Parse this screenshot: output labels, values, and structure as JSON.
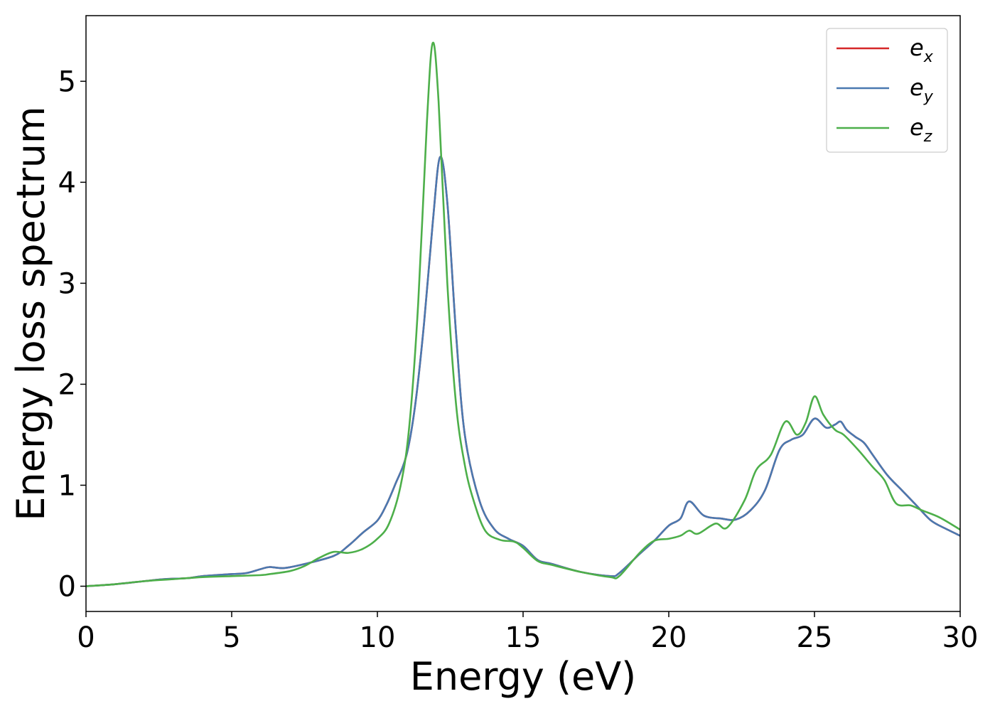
{
  "chart_data": {
    "type": "line",
    "xlabel": "Energy (eV)",
    "ylabel": "Energy loss spectrum",
    "xlim": [
      0,
      30
    ],
    "ylim": [
      -0.25,
      5.65
    ],
    "xticks": [
      0,
      5,
      10,
      15,
      20,
      25,
      30
    ],
    "yticks": [
      0,
      1,
      2,
      3,
      4,
      5
    ],
    "grid": false,
    "legend_position": "top-right",
    "series": [
      {
        "name": "e_x",
        "label_base": "e",
        "label_sub": "x",
        "color": "#d62728",
        "x": [
          0,
          1,
          2,
          2.7,
          3.5,
          4,
          5,
          5.5,
          6,
          6.3,
          6.8,
          7.5,
          8.5,
          9,
          9.5,
          10,
          10.3,
          10.6,
          11,
          11.3,
          11.6,
          11.9,
          12.15,
          12.4,
          12.7,
          13,
          13.5,
          14,
          14.5,
          15,
          15.5,
          16,
          17,
          18,
          18.3,
          19,
          19.5,
          20,
          20.4,
          20.7,
          21.2,
          21.8,
          22.3,
          22.8,
          23.3,
          23.8,
          24.2,
          24.6,
          25,
          25.4,
          25.7,
          25.9,
          26.1,
          26.4,
          26.7,
          27,
          27.5,
          28,
          28.5,
          29,
          29.5,
          30
        ],
        "y": [
          0,
          0.02,
          0.05,
          0.07,
          0.08,
          0.1,
          0.12,
          0.13,
          0.17,
          0.19,
          0.18,
          0.22,
          0.3,
          0.4,
          0.53,
          0.65,
          0.8,
          1.0,
          1.3,
          1.8,
          2.6,
          3.6,
          4.25,
          3.8,
          2.5,
          1.5,
          0.85,
          0.57,
          0.47,
          0.4,
          0.26,
          0.22,
          0.14,
          0.1,
          0.13,
          0.32,
          0.45,
          0.6,
          0.67,
          0.84,
          0.7,
          0.67,
          0.66,
          0.75,
          0.95,
          1.35,
          1.45,
          1.5,
          1.66,
          1.57,
          1.6,
          1.63,
          1.55,
          1.48,
          1.42,
          1.3,
          1.1,
          0.95,
          0.8,
          0.65,
          0.57,
          0.5
        ]
      },
      {
        "name": "e_y",
        "label_base": "e",
        "label_sub": "y",
        "color": "#4a79b0",
        "x": [
          0,
          1,
          2,
          2.7,
          3.5,
          4,
          5,
          5.5,
          6,
          6.3,
          6.8,
          7.5,
          8.5,
          9,
          9.5,
          10,
          10.3,
          10.6,
          11,
          11.3,
          11.6,
          11.9,
          12.15,
          12.4,
          12.7,
          13,
          13.5,
          14,
          14.5,
          15,
          15.5,
          16,
          17,
          18,
          18.3,
          19,
          19.5,
          20,
          20.4,
          20.7,
          21.2,
          21.8,
          22.3,
          22.8,
          23.3,
          23.8,
          24.2,
          24.6,
          25,
          25.4,
          25.7,
          25.9,
          26.1,
          26.4,
          26.7,
          27,
          27.5,
          28,
          28.5,
          29,
          29.5,
          30
        ],
        "y": [
          0,
          0.02,
          0.05,
          0.07,
          0.08,
          0.1,
          0.12,
          0.13,
          0.17,
          0.19,
          0.18,
          0.22,
          0.3,
          0.4,
          0.53,
          0.65,
          0.8,
          1.0,
          1.3,
          1.8,
          2.6,
          3.6,
          4.25,
          3.8,
          2.5,
          1.5,
          0.85,
          0.57,
          0.47,
          0.4,
          0.26,
          0.22,
          0.14,
          0.1,
          0.13,
          0.32,
          0.45,
          0.6,
          0.67,
          0.84,
          0.7,
          0.67,
          0.66,
          0.75,
          0.95,
          1.35,
          1.45,
          1.5,
          1.66,
          1.57,
          1.6,
          1.63,
          1.55,
          1.48,
          1.42,
          1.3,
          1.1,
          0.95,
          0.8,
          0.65,
          0.57,
          0.5
        ]
      },
      {
        "name": "e_z",
        "label_base": "e",
        "label_sub": "z",
        "color": "#4daf4a",
        "x": [
          0,
          1,
          2,
          3,
          4,
          5,
          6,
          6.3,
          7,
          7.5,
          8,
          8.5,
          9,
          9.5,
          10,
          10.4,
          10.8,
          11.1,
          11.4,
          11.7,
          11.9,
          12.1,
          12.4,
          12.7,
          13,
          13.3,
          13.7,
          14.2,
          14.7,
          15,
          15.5,
          16,
          17,
          18,
          18.3,
          19,
          19.5,
          20,
          20.4,
          20.7,
          21,
          21.6,
          22,
          22.6,
          23,
          23.5,
          24,
          24.4,
          24.7,
          25,
          25.3,
          25.7,
          26,
          26.5,
          27,
          27.4,
          27.8,
          28.3,
          28.7,
          29.3,
          30
        ],
        "y": [
          0,
          0.02,
          0.05,
          0.07,
          0.09,
          0.1,
          0.11,
          0.12,
          0.15,
          0.2,
          0.28,
          0.34,
          0.33,
          0.37,
          0.47,
          0.62,
          1.0,
          1.6,
          2.8,
          4.6,
          5.38,
          4.8,
          3.0,
          1.8,
          1.2,
          0.85,
          0.55,
          0.46,
          0.44,
          0.38,
          0.25,
          0.21,
          0.14,
          0.09,
          0.1,
          0.33,
          0.45,
          0.47,
          0.5,
          0.55,
          0.52,
          0.62,
          0.58,
          0.85,
          1.15,
          1.3,
          1.63,
          1.5,
          1.62,
          1.88,
          1.7,
          1.55,
          1.5,
          1.35,
          1.18,
          1.05,
          0.82,
          0.8,
          0.75,
          0.68,
          0.56
        ]
      }
    ]
  }
}
